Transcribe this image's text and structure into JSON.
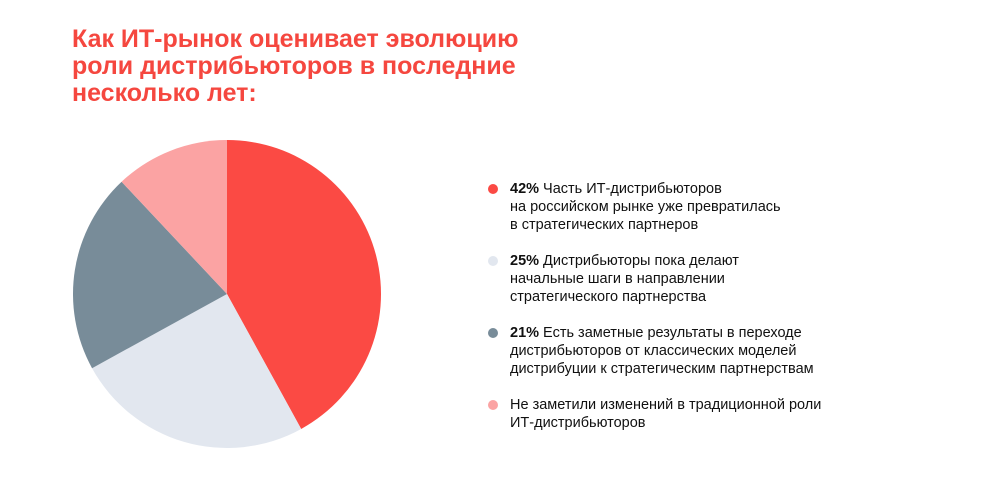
{
  "title": {
    "lines": [
      "Как ИТ-рынок оценивает эволюцию",
      "роли дистрибьюторов в последние",
      "несколько лет:"
    ]
  },
  "chart_data": {
    "type": "pie",
    "title": "Как ИТ-рынок оценивает эволюцию роли дистрибьюторов в последние несколько лет:",
    "legend_placement": "right",
    "slices": [
      {
        "value": 42,
        "label": "42%",
        "color": "#fb4a44",
        "text_lines": [
          "Часть ИТ-дистрибьюторов",
          "на российском рынке уже превратилась",
          "в стратегических партнеров"
        ]
      },
      {
        "value": 25,
        "label": "25%",
        "color": "#e2e7ef",
        "text_lines": [
          "Дистрибьюторы пока делают",
          "начальные шаги в направлении",
          "стратегического партнерства"
        ]
      },
      {
        "value": 21,
        "label": "21%",
        "color": "#788c99",
        "text_lines": [
          "Есть заметные результаты в переходе",
          "дистрибьюторов от классических моделей",
          "дистрибуции к стратегическим партнерствам"
        ]
      },
      {
        "value": 12,
        "label": "",
        "color": "#fba3a3",
        "text_lines": [
          "Не заметили изменений в традиционной роли",
          "ИТ-дистрибьюторов"
        ]
      }
    ]
  }
}
